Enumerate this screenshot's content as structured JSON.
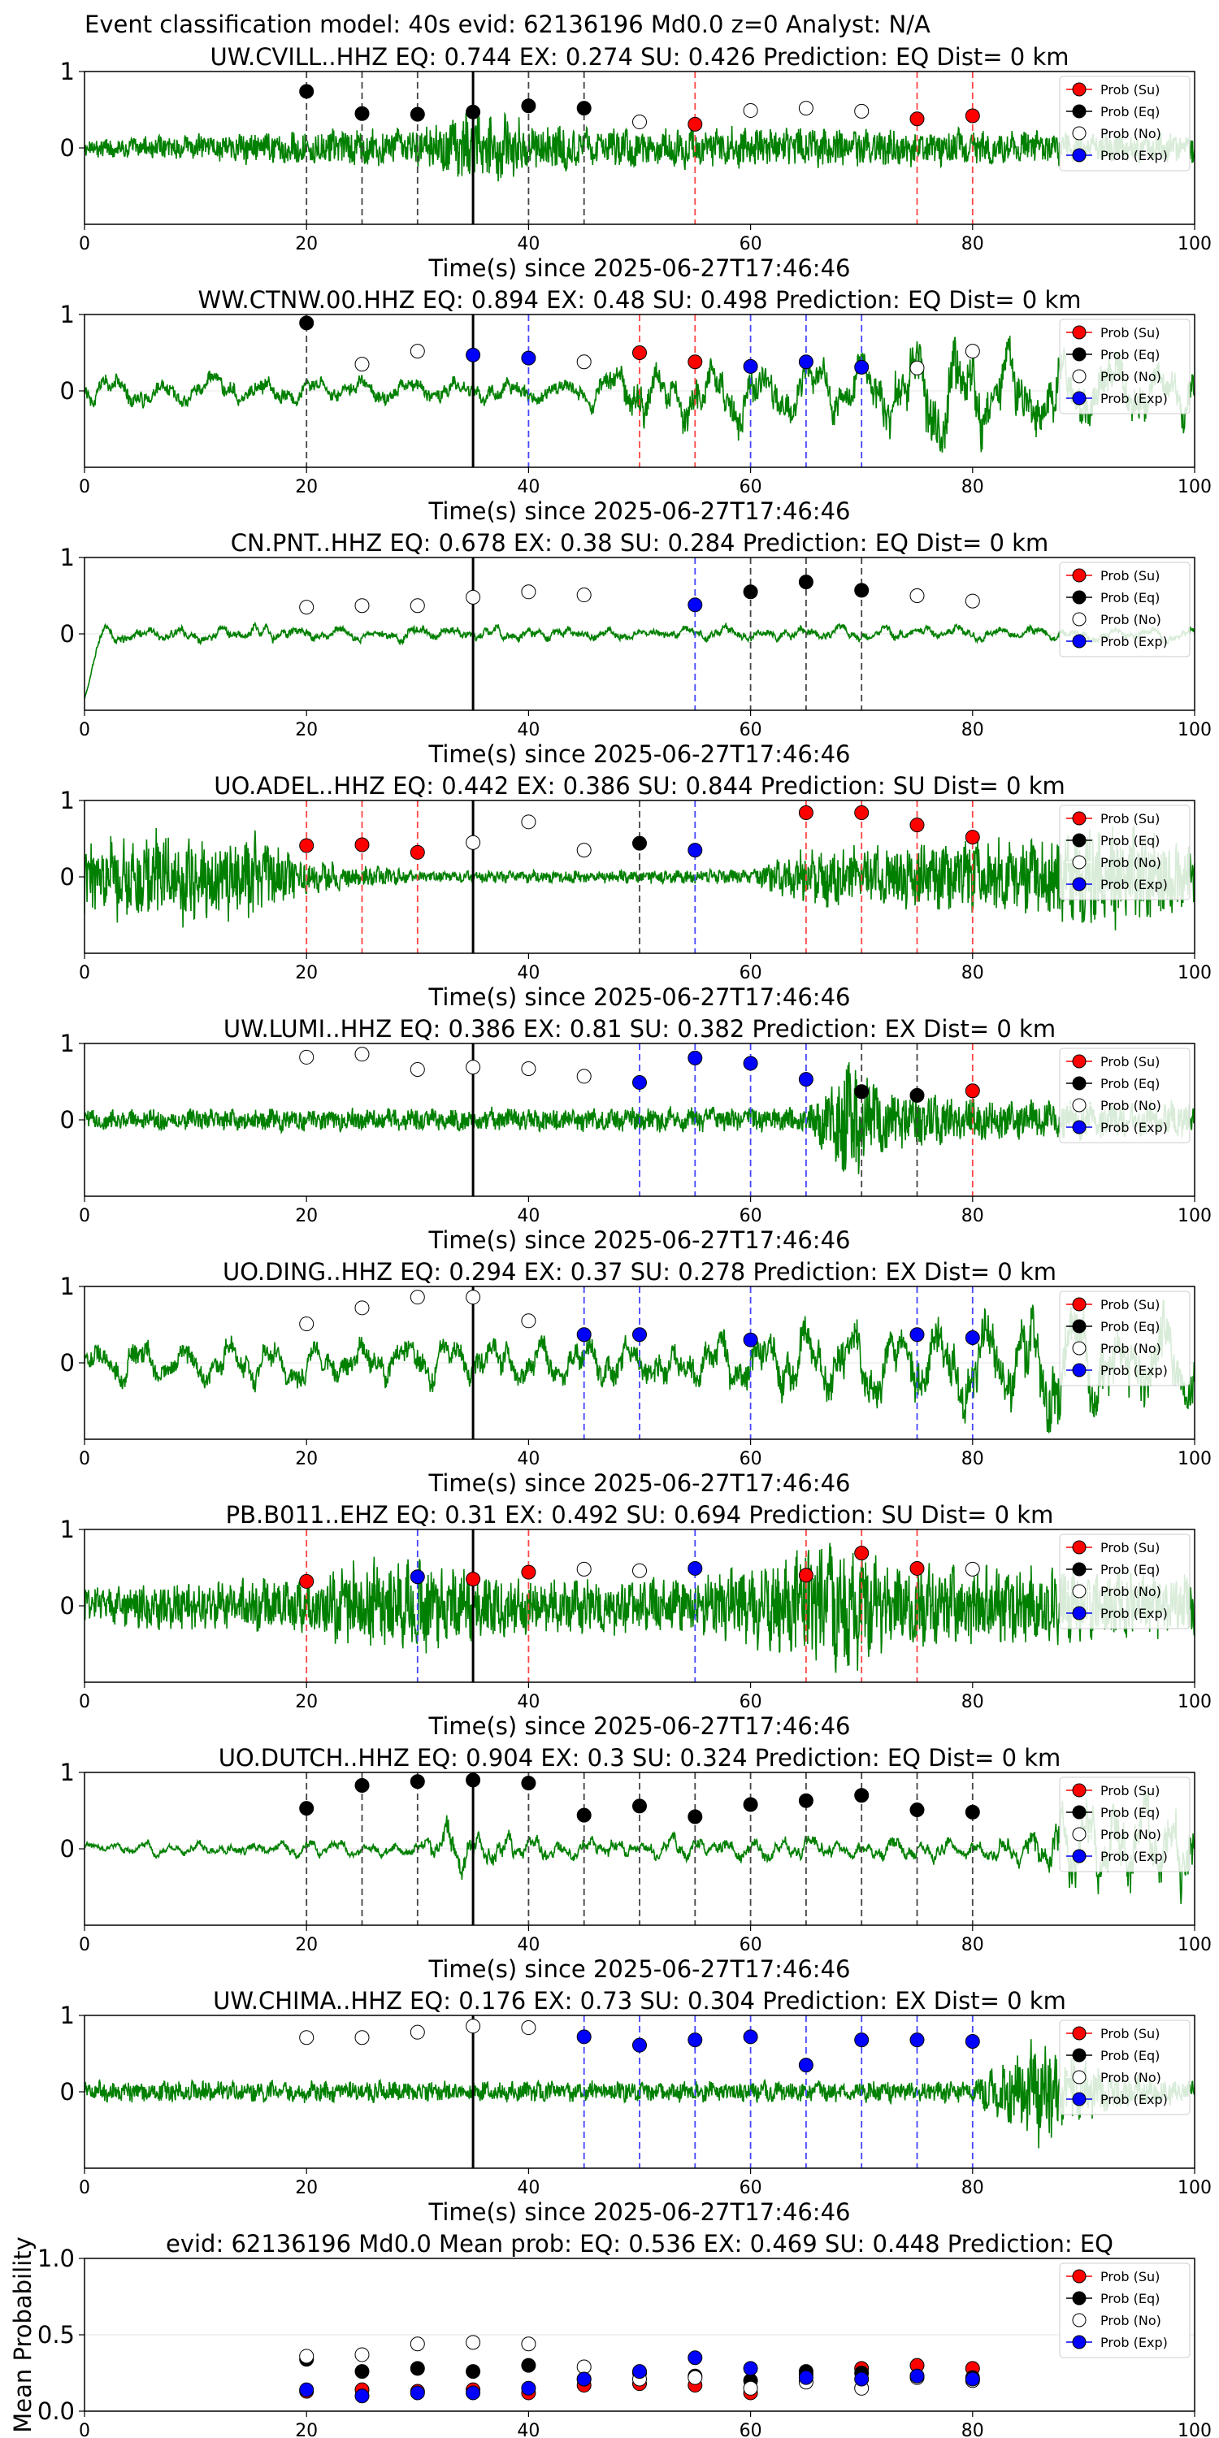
{
  "figure": {
    "title": "Event classification model: 40s evid: 62136196 Md0.0 z=0 Analyst: N/A"
  },
  "colors": {
    "su": "#ff0000",
    "eq": "#000000",
    "no": "#ffffff",
    "exp": "#0000ff",
    "waveform": "#008000",
    "su_line": "#ff4444",
    "eq_line": "#444444",
    "exp_line": "#4444ff"
  },
  "legend_labels": [
    "Prob (Su)",
    "Prob (Eq)",
    "Prob (No)",
    "Prob (Exp)"
  ],
  "chart_data": [
    {
      "type": "scatter",
      "title": "UW.CVILL..HHZ   EQ: 0.744  EX: 0.274  SU: 0.426   Prediction: EQ    Dist= 0 km",
      "xlabel": "Time(s) since 2025-06-27T17:46:46",
      "ylabel": "",
      "xlim": [
        0,
        100
      ],
      "ylim": [
        -1,
        1
      ],
      "xticks": [
        0,
        20,
        40,
        60,
        80,
        100
      ],
      "yticks": [
        0,
        1
      ],
      "legend_position": "top-right",
      "reference_line_x": 35,
      "x": [
        20,
        25,
        30,
        35,
        40,
        45,
        50,
        55,
        60,
        65,
        70,
        75,
        80
      ],
      "class": [
        "eq",
        "eq",
        "eq",
        "eq",
        "eq",
        "eq",
        "no",
        "su",
        "no",
        "no",
        "no",
        "su",
        "su"
      ],
      "prob": [
        0.74,
        0.45,
        0.44,
        0.47,
        0.55,
        0.52,
        0.34,
        0.31,
        0.49,
        0.52,
        0.48,
        0.38,
        0.42
      ],
      "waveform": {
        "envelope": [
          [
            0,
            0.12
          ],
          [
            20,
            0.25
          ],
          [
            30,
            0.3
          ],
          [
            36,
            0.55
          ],
          [
            40,
            0.35
          ],
          [
            50,
            0.28
          ],
          [
            70,
            0.28
          ],
          [
            100,
            0.2
          ]
        ],
        "base_period": 1.2,
        "style": "noise"
      }
    },
    {
      "type": "scatter",
      "title": "WW.CTNW.00.HHZ   EQ: 0.894  EX: 0.48  SU: 0.498   Prediction: EQ    Dist= 0 km",
      "xlabel": "Time(s) since 2025-06-27T17:46:46",
      "ylabel": "",
      "xlim": [
        0,
        100
      ],
      "ylim": [
        -1,
        1
      ],
      "xticks": [
        0,
        20,
        40,
        60,
        80,
        100
      ],
      "yticks": [
        0,
        1
      ],
      "legend_position": "top-right",
      "reference_line_x": 35,
      "x": [
        20,
        25,
        30,
        35,
        40,
        45,
        50,
        55,
        60,
        65,
        70,
        75,
        80
      ],
      "class": [
        "eq",
        "no",
        "no",
        "exp",
        "exp",
        "no",
        "su",
        "su",
        "exp",
        "exp",
        "exp",
        "no",
        "no"
      ],
      "prob": [
        0.89,
        0.35,
        0.52,
        0.47,
        0.43,
        0.38,
        0.5,
        0.38,
        0.32,
        0.38,
        0.31,
        0.3,
        0.52
      ],
      "waveform": {
        "envelope": [
          [
            0,
            0.2
          ],
          [
            45,
            0.2
          ],
          [
            50,
            0.45
          ],
          [
            70,
            0.45
          ],
          [
            77,
            0.85
          ],
          [
            85,
            0.6
          ],
          [
            100,
            0.45
          ]
        ],
        "base_period": 4.5,
        "style": "oscillating"
      }
    },
    {
      "type": "scatter",
      "title": "CN.PNT..HHZ   EQ: 0.678  EX: 0.38  SU: 0.284   Prediction: EQ    Dist= 0 km",
      "xlabel": "Time(s) since 2025-06-27T17:46:46",
      "ylabel": "",
      "xlim": [
        0,
        100
      ],
      "ylim": [
        -1,
        1
      ],
      "xticks": [
        0,
        20,
        40,
        60,
        80,
        100
      ],
      "yticks": [
        0,
        1
      ],
      "legend_position": "top-right",
      "reference_line_x": 35,
      "x": [
        20,
        25,
        30,
        35,
        40,
        45,
        55,
        60,
        65,
        70,
        75,
        80
      ],
      "class": [
        "no",
        "no",
        "no",
        "no",
        "no",
        "no",
        "exp",
        "eq",
        "eq",
        "eq",
        "no",
        "no"
      ],
      "prob": [
        0.35,
        0.37,
        0.37,
        0.48,
        0.55,
        0.51,
        0.38,
        0.55,
        0.68,
        0.57,
        0.5,
        0.43
      ],
      "waveform": {
        "envelope": [
          [
            0,
            0.15
          ],
          [
            100,
            0.12
          ]
        ],
        "base_period": 3.5,
        "style": "smooth",
        "initial_dip": -0.85
      }
    },
    {
      "type": "scatter",
      "title": "UO.ADEL..HHZ   EQ: 0.442  EX: 0.386  SU: 0.844   Prediction: SU    Dist= 0 km",
      "xlabel": "Time(s) since 2025-06-27T17:46:46",
      "ylabel": "",
      "xlim": [
        0,
        100
      ],
      "ylim": [
        -1,
        1
      ],
      "xticks": [
        0,
        20,
        40,
        60,
        80,
        100
      ],
      "yticks": [
        0,
        1
      ],
      "legend_position": "top-right",
      "reference_line_x": 35,
      "x": [
        20,
        25,
        30,
        35,
        40,
        45,
        50,
        55,
        65,
        70,
        75,
        80
      ],
      "class": [
        "su",
        "su",
        "su",
        "no",
        "no",
        "no",
        "eq",
        "exp",
        "su",
        "su",
        "su",
        "su"
      ],
      "prob": [
        0.41,
        0.42,
        0.32,
        0.45,
        0.72,
        0.35,
        0.44,
        0.35,
        0.84,
        0.84,
        0.68,
        0.52
      ],
      "waveform": {
        "envelope": [
          [
            0,
            0.55
          ],
          [
            14,
            0.7
          ],
          [
            20,
            0.25
          ],
          [
            30,
            0.08
          ],
          [
            60,
            0.1
          ],
          [
            65,
            0.4
          ],
          [
            85,
            0.55
          ],
          [
            92,
            0.8
          ],
          [
            100,
            0.5
          ]
        ],
        "base_period": 1.0,
        "style": "noise"
      }
    },
    {
      "type": "scatter",
      "title": "UW.LUMI..HHZ   EQ: 0.386  EX: 0.81  SU: 0.382   Prediction: EX    Dist= 0 km",
      "xlabel": "Time(s) since 2025-06-27T17:46:46",
      "ylabel": "",
      "xlim": [
        0,
        100
      ],
      "ylim": [
        -1,
        1
      ],
      "xticks": [
        0,
        20,
        40,
        60,
        80,
        100
      ],
      "yticks": [
        0,
        1
      ],
      "legend_position": "top-right",
      "reference_line_x": 35,
      "x": [
        20,
        25,
        30,
        35,
        40,
        45,
        50,
        55,
        60,
        65,
        70,
        75,
        80
      ],
      "class": [
        "no",
        "no",
        "no",
        "no",
        "no",
        "no",
        "exp",
        "exp",
        "exp",
        "exp",
        "eq",
        "eq",
        "su"
      ],
      "prob": [
        0.82,
        0.86,
        0.66,
        0.69,
        0.67,
        0.57,
        0.49,
        0.81,
        0.74,
        0.53,
        0.37,
        0.32,
        0.38
      ],
      "waveform": {
        "envelope": [
          [
            0,
            0.15
          ],
          [
            65,
            0.18
          ],
          [
            69,
            0.95
          ],
          [
            72,
            0.5
          ],
          [
            80,
            0.3
          ],
          [
            100,
            0.25
          ]
        ],
        "base_period": 1.8,
        "style": "noise"
      }
    },
    {
      "type": "scatter",
      "title": "UO.DING..HHZ   EQ: 0.294  EX: 0.37  SU: 0.278   Prediction: EX    Dist= 0 km",
      "xlabel": "Time(s) since 2025-06-27T17:46:46",
      "ylabel": "",
      "xlim": [
        0,
        100
      ],
      "ylim": [
        -1,
        1
      ],
      "xticks": [
        0,
        20,
        40,
        60,
        80,
        100
      ],
      "yticks": [
        0,
        1
      ],
      "legend_position": "top-right",
      "reference_line_x": 35,
      "x": [
        20,
        25,
        30,
        35,
        40,
        45,
        50,
        60,
        75,
        80
      ],
      "class": [
        "no",
        "no",
        "no",
        "no",
        "no",
        "exp",
        "exp",
        "exp",
        "exp",
        "exp"
      ],
      "prob": [
        0.51,
        0.72,
        0.86,
        0.86,
        0.55,
        0.37,
        0.37,
        0.3,
        0.37,
        0.33
      ],
      "waveform": {
        "envelope": [
          [
            0,
            0.3
          ],
          [
            50,
            0.35
          ],
          [
            65,
            0.5
          ],
          [
            80,
            0.7
          ],
          [
            90,
            0.9
          ],
          [
            100,
            0.55
          ]
        ],
        "base_period": 4.0,
        "style": "oscillating"
      }
    },
    {
      "type": "scatter",
      "title": "PB.B011..EHZ   EQ: 0.31  EX: 0.492  SU: 0.694   Prediction: SU    Dist= 0 km",
      "xlabel": "Time(s) since 2025-06-27T17:46:46",
      "ylabel": "",
      "xlim": [
        0,
        100
      ],
      "ylim": [
        -1,
        1
      ],
      "xticks": [
        0,
        20,
        40,
        60,
        80,
        100
      ],
      "yticks": [
        0,
        1
      ],
      "legend_position": "top-right",
      "reference_line_x": 35,
      "x": [
        20,
        30,
        35,
        40,
        45,
        50,
        55,
        65,
        70,
        75,
        80
      ],
      "class": [
        "su",
        "exp",
        "su",
        "su",
        "no",
        "no",
        "exp",
        "su",
        "su",
        "su",
        "no"
      ],
      "prob": [
        0.32,
        0.38,
        0.35,
        0.44,
        0.48,
        0.46,
        0.49,
        0.4,
        0.69,
        0.49,
        0.48
      ],
      "waveform": {
        "envelope": [
          [
            0,
            0.3
          ],
          [
            20,
            0.4
          ],
          [
            27,
            0.7
          ],
          [
            40,
            0.4
          ],
          [
            55,
            0.4
          ],
          [
            69,
            0.95
          ],
          [
            72,
            0.6
          ],
          [
            100,
            0.5
          ]
        ],
        "base_period": 1.0,
        "style": "noise"
      }
    },
    {
      "type": "scatter",
      "title": "UO.DUTCH..HHZ   EQ: 0.904  EX: 0.3  SU: 0.324   Prediction: EQ    Dist= 0 km",
      "xlabel": "Time(s) since 2025-06-27T17:46:46",
      "ylabel": "",
      "xlim": [
        0,
        100
      ],
      "ylim": [
        -1,
        1
      ],
      "xticks": [
        0,
        20,
        40,
        60,
        80,
        100
      ],
      "yticks": [
        0,
        1
      ],
      "legend_position": "top-right",
      "reference_line_x": 35,
      "x": [
        20,
        25,
        30,
        35,
        40,
        45,
        50,
        55,
        60,
        65,
        70,
        75,
        80
      ],
      "class": [
        "eq",
        "eq",
        "eq",
        "eq",
        "eq",
        "eq",
        "eq",
        "eq",
        "eq",
        "eq",
        "eq",
        "eq",
        "eq"
      ],
      "prob": [
        0.53,
        0.83,
        0.88,
        0.9,
        0.86,
        0.44,
        0.56,
        0.42,
        0.58,
        0.63,
        0.7,
        0.51,
        0.48
      ],
      "waveform": {
        "envelope": [
          [
            0,
            0.1
          ],
          [
            30,
            0.15
          ],
          [
            33,
            0.45
          ],
          [
            40,
            0.2
          ],
          [
            82,
            0.2
          ],
          [
            90,
            0.8
          ],
          [
            100,
            0.85
          ]
        ],
        "base_period": 2.5,
        "style": "smooth"
      }
    },
    {
      "type": "scatter",
      "title": "UW.CHIMA..HHZ   EQ: 0.176  EX: 0.73  SU: 0.304   Prediction: EX    Dist= 0 km",
      "xlabel": "Time(s) since 2025-06-27T17:46:46",
      "ylabel": "",
      "xlim": [
        0,
        100
      ],
      "ylim": [
        -1,
        1
      ],
      "xticks": [
        0,
        20,
        40,
        60,
        80,
        100
      ],
      "yticks": [
        0,
        1
      ],
      "legend_position": "top-right",
      "reference_line_x": 35,
      "x": [
        20,
        25,
        30,
        35,
        40,
        45,
        50,
        55,
        60,
        65,
        70,
        75,
        80
      ],
      "class": [
        "no",
        "no",
        "no",
        "no",
        "no",
        "exp",
        "exp",
        "exp",
        "exp",
        "exp",
        "exp",
        "exp",
        "exp"
      ],
      "prob": [
        0.71,
        0.71,
        0.78,
        0.86,
        0.84,
        0.72,
        0.61,
        0.68,
        0.72,
        0.35,
        0.68,
        0.68,
        0.66
      ],
      "waveform": {
        "envelope": [
          [
            0,
            0.15
          ],
          [
            80,
            0.15
          ],
          [
            86,
            0.75
          ],
          [
            92,
            0.3
          ],
          [
            100,
            0.15
          ]
        ],
        "base_period": 1.2,
        "style": "noise"
      }
    },
    {
      "type": "scatter",
      "title": "evid: 62136196  Md0.0   Mean prob:    EQ: 0.536  EX: 0.469  SU: 0.448   Prediction: EQ",
      "xlabel": "",
      "ylabel": "Mean Probability",
      "xlim": [
        0,
        100
      ],
      "ylim": [
        0,
        1
      ],
      "xticks": [
        0,
        20,
        40,
        60,
        80,
        100
      ],
      "yticks": [
        0.0,
        0.5,
        1.0
      ],
      "legend_position": "top-right",
      "series": [
        {
          "name": "Prob (Su)",
          "class": "su",
          "x": [
            20,
            25,
            30,
            35,
            40,
            45,
            50,
            55,
            60,
            65,
            70,
            75,
            80
          ],
          "values": [
            0.13,
            0.14,
            0.13,
            0.14,
            0.12,
            0.17,
            0.18,
            0.17,
            0.12,
            0.24,
            0.28,
            0.3,
            0.28
          ]
        },
        {
          "name": "Prob (Eq)",
          "class": "eq",
          "x": [
            20,
            25,
            30,
            35,
            40,
            45,
            50,
            55,
            60,
            65,
            70,
            75,
            80
          ],
          "values": [
            0.34,
            0.26,
            0.28,
            0.26,
            0.3,
            0.21,
            0.25,
            0.23,
            0.2,
            0.26,
            0.25,
            0.23,
            0.22
          ]
        },
        {
          "name": "Prob (No)",
          "class": "no",
          "x": [
            20,
            25,
            30,
            35,
            40,
            45,
            50,
            55,
            60,
            65,
            70,
            75,
            80
          ],
          "values": [
            0.36,
            0.37,
            0.44,
            0.45,
            0.44,
            0.29,
            0.21,
            0.22,
            0.15,
            0.19,
            0.15,
            0.22,
            0.2
          ]
        },
        {
          "name": "Prob (Exp)",
          "class": "exp",
          "x": [
            20,
            25,
            30,
            35,
            40,
            45,
            50,
            55,
            60,
            65,
            70,
            75,
            80
          ],
          "values": [
            0.14,
            0.1,
            0.12,
            0.12,
            0.15,
            0.21,
            0.26,
            0.35,
            0.28,
            0.22,
            0.21,
            0.23,
            0.21
          ]
        }
      ]
    }
  ]
}
